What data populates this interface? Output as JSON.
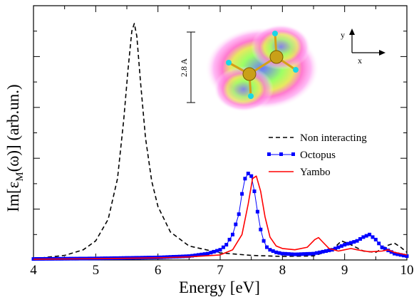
{
  "chart_data": {
    "type": "line",
    "xlabel": "Energy [eV]",
    "ylabel_main": "Im[ε",
    "ylabel_sub": "M",
    "ylabel_rest": "(ω)] (arb.un.)",
    "xlim": [
      4,
      10
    ],
    "ylim": [
      0,
      1.0
    ],
    "x_ticks": [
      "4",
      "5",
      "6",
      "7",
      "8",
      "9",
      "10"
    ],
    "grid": false,
    "legend_position": "right",
    "series": [
      {
        "name": "Non interacting",
        "style": "dashed",
        "color": "#000000",
        "x": [
          4.0,
          4.5,
          4.8,
          5.0,
          5.2,
          5.35,
          5.45,
          5.52,
          5.58,
          5.62,
          5.66,
          5.72,
          5.8,
          5.9,
          6.0,
          6.2,
          6.5,
          7.0,
          7.5,
          8.0,
          8.5,
          8.8,
          8.95,
          9.1,
          9.3,
          9.5,
          9.7,
          9.8,
          9.9,
          10.0
        ],
        "y": [
          0.005,
          0.018,
          0.04,
          0.075,
          0.16,
          0.32,
          0.55,
          0.75,
          0.9,
          0.93,
          0.88,
          0.7,
          0.48,
          0.31,
          0.21,
          0.11,
          0.055,
          0.028,
          0.018,
          0.014,
          0.016,
          0.04,
          0.075,
          0.06,
          0.035,
          0.03,
          0.058,
          0.066,
          0.05,
          0.03
        ]
      },
      {
        "name": "Octopus",
        "style": "line-markers",
        "color": "#0000ff",
        "x": [
          4.0,
          5.0,
          6.0,
          6.5,
          6.8,
          7.0,
          7.1,
          7.2,
          7.3,
          7.35,
          7.4,
          7.45,
          7.5,
          7.55,
          7.6,
          7.65,
          7.7,
          7.75,
          7.8,
          7.9,
          8.0,
          8.2,
          8.5,
          8.8,
          9.0,
          9.2,
          9.3,
          9.4,
          9.5,
          9.6,
          9.8,
          10.0
        ],
        "y": [
          0.004,
          0.006,
          0.01,
          0.015,
          0.025,
          0.04,
          0.06,
          0.1,
          0.18,
          0.26,
          0.32,
          0.34,
          0.33,
          0.27,
          0.19,
          0.12,
          0.075,
          0.05,
          0.04,
          0.03,
          0.025,
          0.022,
          0.025,
          0.04,
          0.06,
          0.075,
          0.09,
          0.1,
          0.08,
          0.05,
          0.025,
          0.015
        ]
      },
      {
        "name": "Yambo",
        "style": "solid",
        "color": "#ff0000",
        "x": [
          4.0,
          5.0,
          6.0,
          6.5,
          7.0,
          7.2,
          7.35,
          7.45,
          7.52,
          7.58,
          7.65,
          7.72,
          7.8,
          7.9,
          8.0,
          8.2,
          8.4,
          8.52,
          8.58,
          8.65,
          8.75,
          8.9,
          9.0,
          9.1,
          9.2,
          9.4,
          9.6,
          9.7,
          9.8,
          9.9,
          10.0
        ],
        "y": [
          0.003,
          0.005,
          0.008,
          0.012,
          0.02,
          0.04,
          0.1,
          0.22,
          0.32,
          0.33,
          0.27,
          0.17,
          0.09,
          0.055,
          0.045,
          0.04,
          0.05,
          0.08,
          0.088,
          0.07,
          0.045,
          0.035,
          0.04,
          0.045,
          0.04,
          0.032,
          0.035,
          0.04,
          0.03,
          0.025,
          0.02
        ]
      }
    ]
  },
  "inset": {
    "scale_label": "2.8 A",
    "axis_y_label": "y",
    "axis_x_label": "x"
  }
}
